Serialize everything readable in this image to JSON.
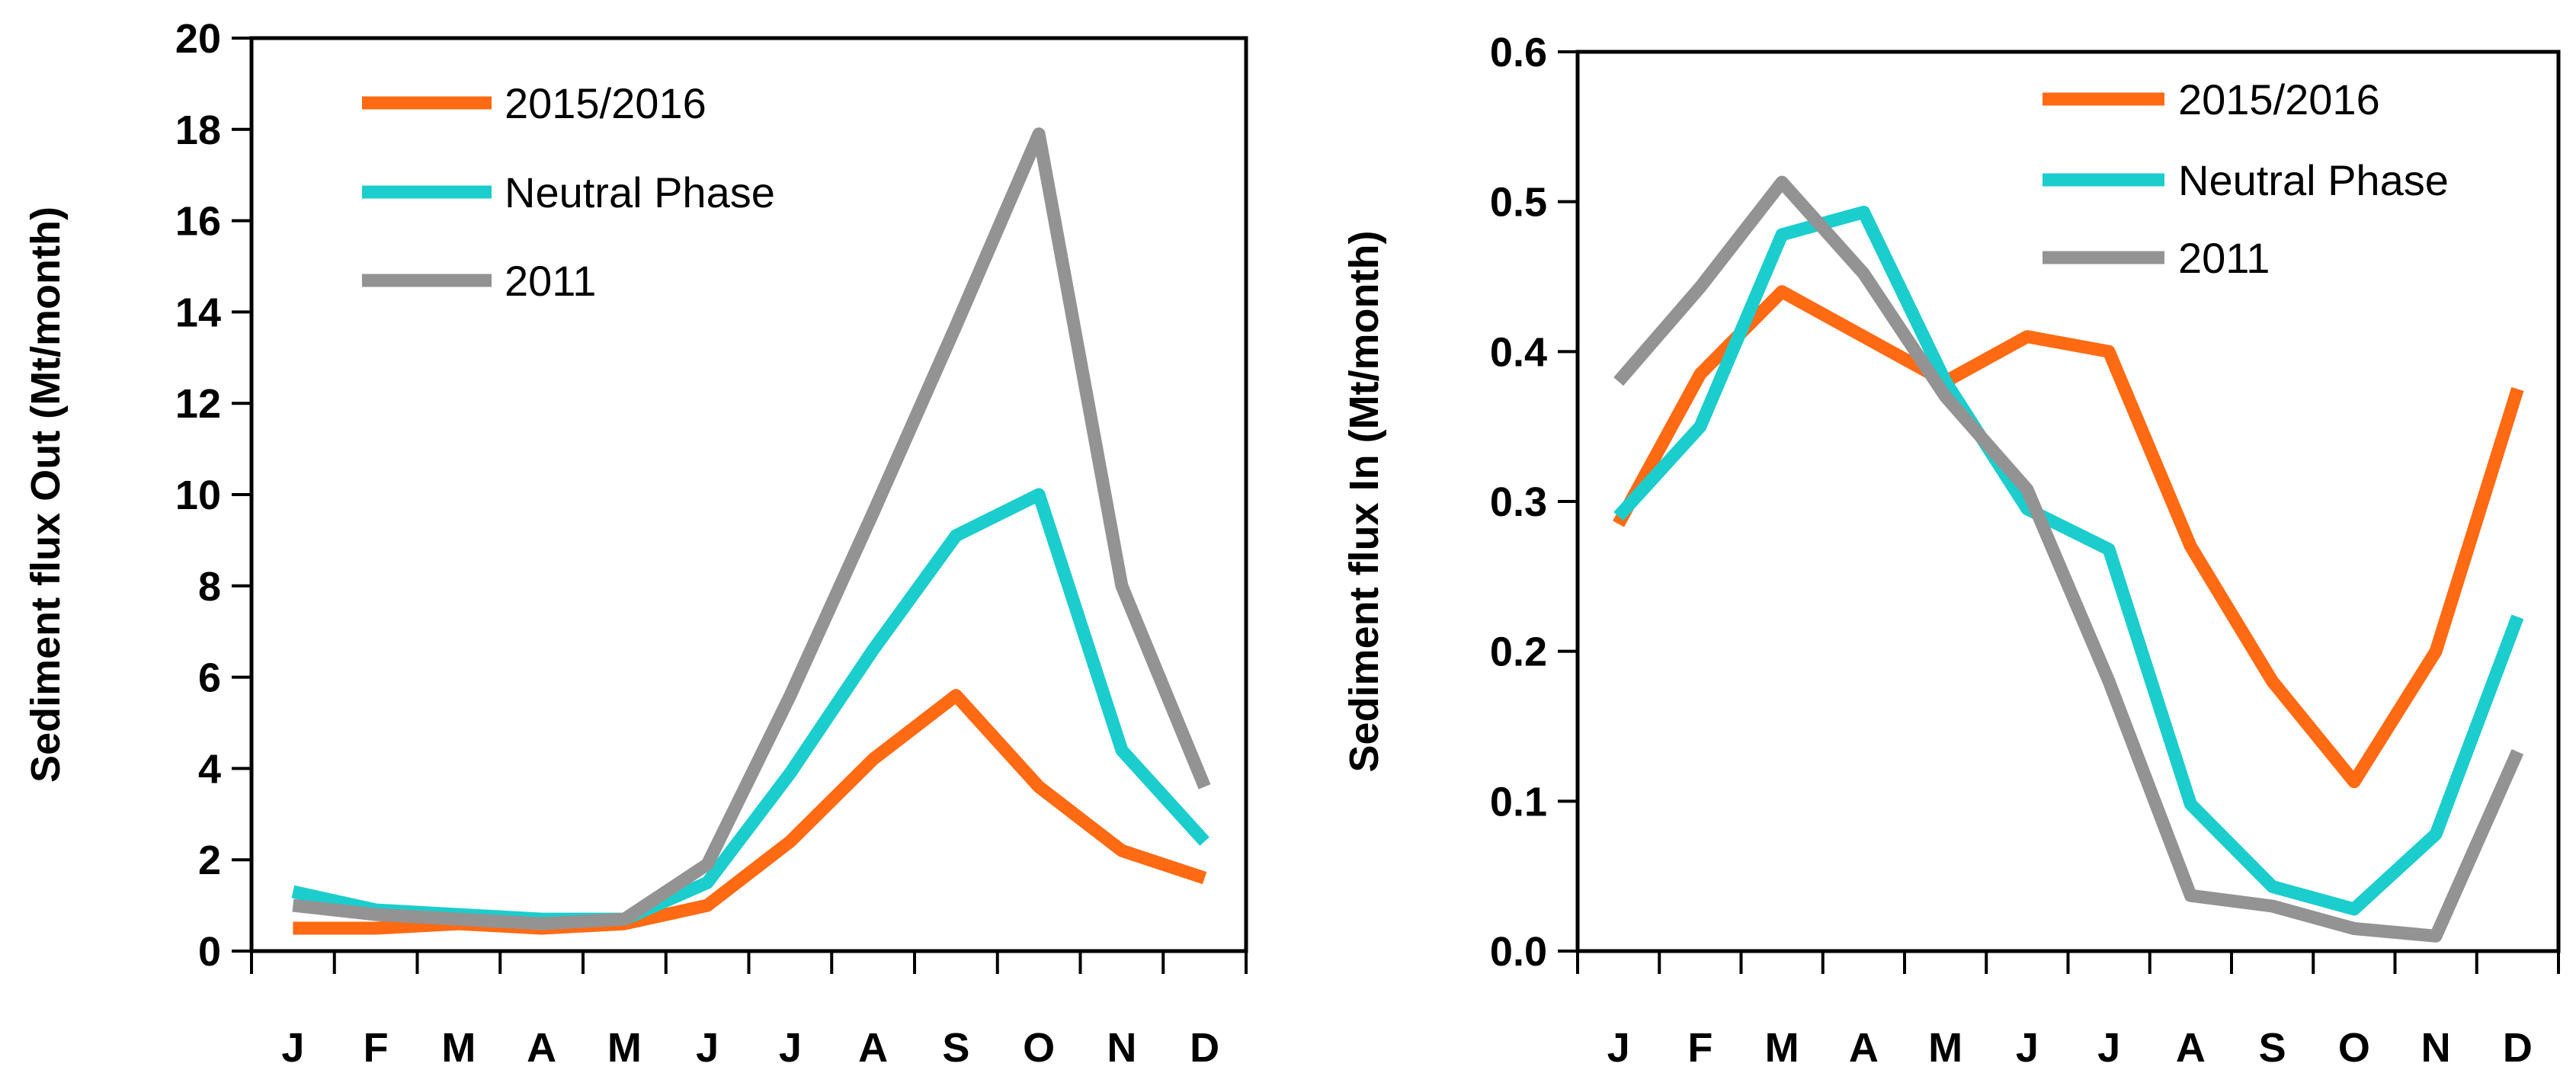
{
  "chart_data": [
    {
      "type": "line",
      "ylabel": "Sediment flux Out (Mt/month)",
      "xlabel": "",
      "title": "",
      "categories": [
        "J",
        "F",
        "M",
        "A",
        "M",
        "J",
        "J",
        "A",
        "S",
        "O",
        "N",
        "D"
      ],
      "ylim": [
        0,
        20
      ],
      "yticks": [
        "0",
        "2",
        "4",
        "6",
        "8",
        "10",
        "12",
        "14",
        "16",
        "18",
        "20"
      ],
      "legend_position": "top-left",
      "series": [
        {
          "name": "2015/2016",
          "color": "#ff6a13",
          "values": [
            0.5,
            0.5,
            0.6,
            0.5,
            0.6,
            1.0,
            2.4,
            4.2,
            5.6,
            3.6,
            2.2,
            1.6
          ]
        },
        {
          "name": "Neutral Phase",
          "color": "#1ccdcd",
          "values": [
            1.3,
            0.9,
            0.8,
            0.7,
            0.7,
            1.5,
            3.9,
            6.6,
            9.1,
            10.0,
            4.4,
            2.4
          ]
        },
        {
          "name": "2011",
          "color": "#939393",
          "values": [
            1.0,
            0.8,
            0.7,
            0.6,
            0.7,
            1.9,
            5.6,
            9.6,
            13.7,
            17.9,
            8.0,
            3.6
          ]
        }
      ]
    },
    {
      "type": "line",
      "ylabel": "Sediment flux In (Mt/month)",
      "xlabel": "",
      "title": "",
      "categories": [
        "J",
        "F",
        "M",
        "A",
        "M",
        "J",
        "J",
        "A",
        "S",
        "O",
        "N",
        "D"
      ],
      "ylim": [
        0,
        0.6
      ],
      "yticks": [
        "0.0",
        "0.1",
        "0.2",
        "0.3",
        "0.4",
        "0.5",
        "0.6"
      ],
      "legend_position": "top-right",
      "series": [
        {
          "name": "2015/2016",
          "color": "#ff6a13",
          "values": [
            0.285,
            0.385,
            0.44,
            0.41,
            0.38,
            0.41,
            0.4,
            0.27,
            0.18,
            0.113,
            0.2,
            0.375
          ]
        },
        {
          "name": "Neutral Phase",
          "color": "#1ccdcd",
          "values": [
            0.29,
            0.35,
            0.478,
            0.493,
            0.38,
            0.295,
            0.268,
            0.098,
            0.043,
            0.028,
            0.078,
            0.223
          ]
        },
        {
          "name": "2011",
          "color": "#939393",
          "values": [
            0.38,
            0.443,
            0.513,
            0.452,
            0.37,
            0.308,
            0.18,
            0.037,
            0.03,
            0.015,
            0.01,
            0.133
          ]
        }
      ]
    }
  ]
}
